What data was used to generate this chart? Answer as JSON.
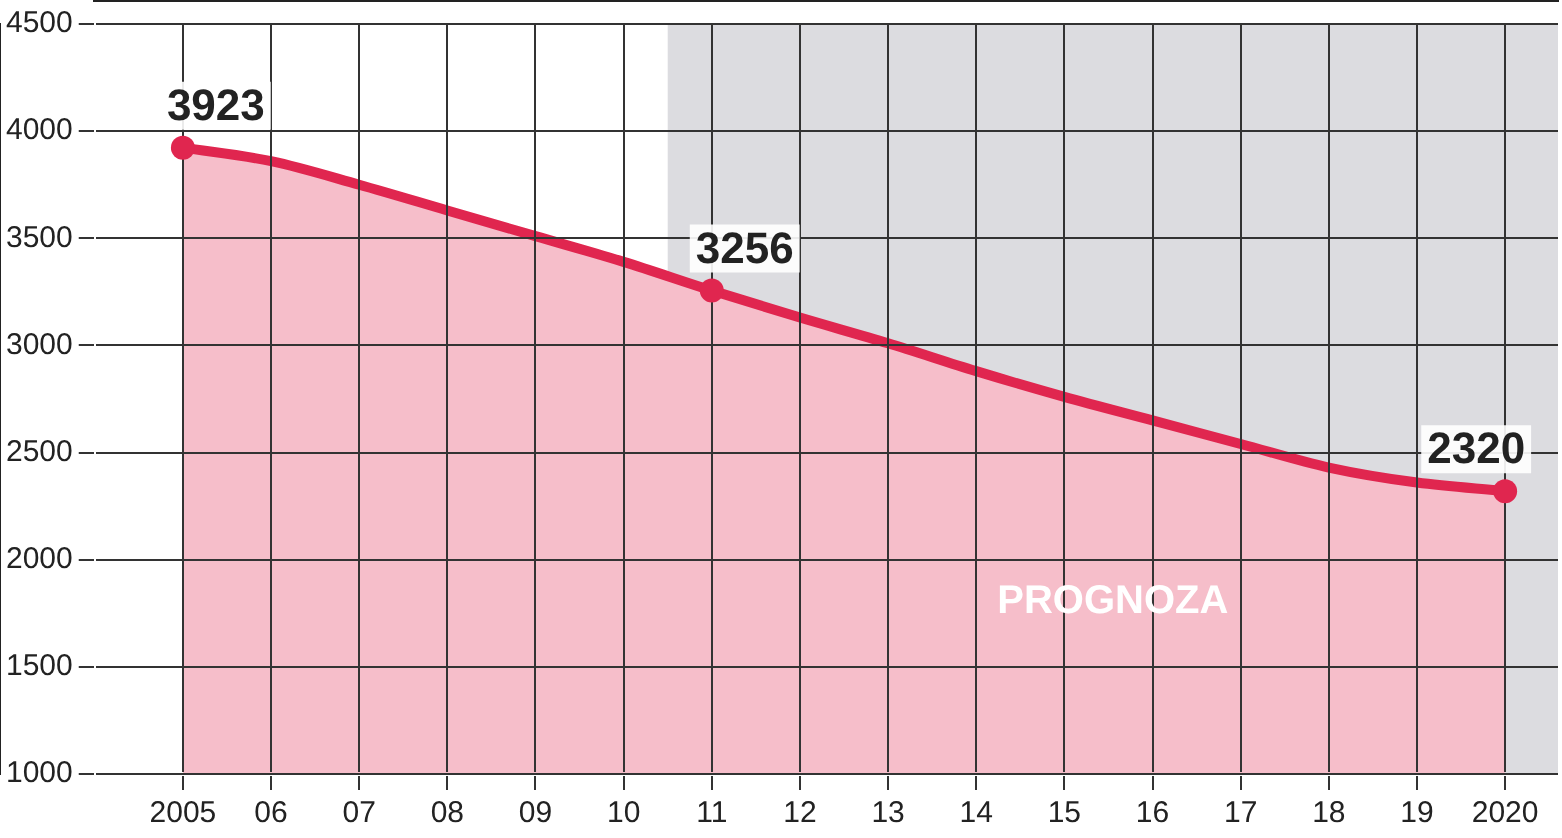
{
  "chart_data": {
    "type": "area",
    "x": [
      2005,
      2006,
      2007,
      2008,
      2009,
      2010,
      2011,
      2012,
      2013,
      2014,
      2015,
      2016,
      2017,
      2018,
      2019,
      2020
    ],
    "series": [
      {
        "color": "#e0264f",
        "values": [
          3923,
          3860,
          3750,
          3630,
          3510,
          3390,
          3256,
          3130,
          3010,
          2880,
          2760,
          2650,
          2540,
          2430,
          2360,
          2320
        ],
        "value_labels": [
          "3923",
          null,
          null,
          null,
          null,
          null,
          "3256",
          null,
          null,
          null,
          null,
          null,
          null,
          null,
          null,
          "2320"
        ]
      }
    ],
    "xlim": [
      2004,
      2020.6
    ],
    "xticks": [
      {
        "value": 2005,
        "label": "2005"
      },
      {
        "value": 2006,
        "label": "06"
      },
      {
        "value": 2007,
        "label": "07"
      },
      {
        "value": 2008,
        "label": "08"
      },
      {
        "value": 2009,
        "label": "09"
      },
      {
        "value": 2010,
        "label": "10"
      },
      {
        "value": 2011,
        "label": "11"
      },
      {
        "value": 2012,
        "label": "12"
      },
      {
        "value": 2013,
        "label": "13"
      },
      {
        "value": 2014,
        "label": "14"
      },
      {
        "value": 2015,
        "label": "15"
      },
      {
        "value": 2016,
        "label": "16"
      },
      {
        "value": 2017,
        "label": "17"
      },
      {
        "value": 2018,
        "label": "18"
      },
      {
        "value": 2019,
        "label": "19"
      },
      {
        "value": 2020,
        "label": "2020"
      }
    ],
    "ylim": [
      1000,
      4500
    ],
    "yticks": [
      1000,
      1500,
      2000,
      2500,
      3000,
      3500,
      4000,
      4500
    ],
    "bands": [
      {
        "axis": "x",
        "from": 2010.5,
        "to": 2020.6,
        "label": "PROGNOZA",
        "color": "#dcdce0"
      }
    ],
    "grid": true,
    "legend": false,
    "line_style": "solid"
  }
}
